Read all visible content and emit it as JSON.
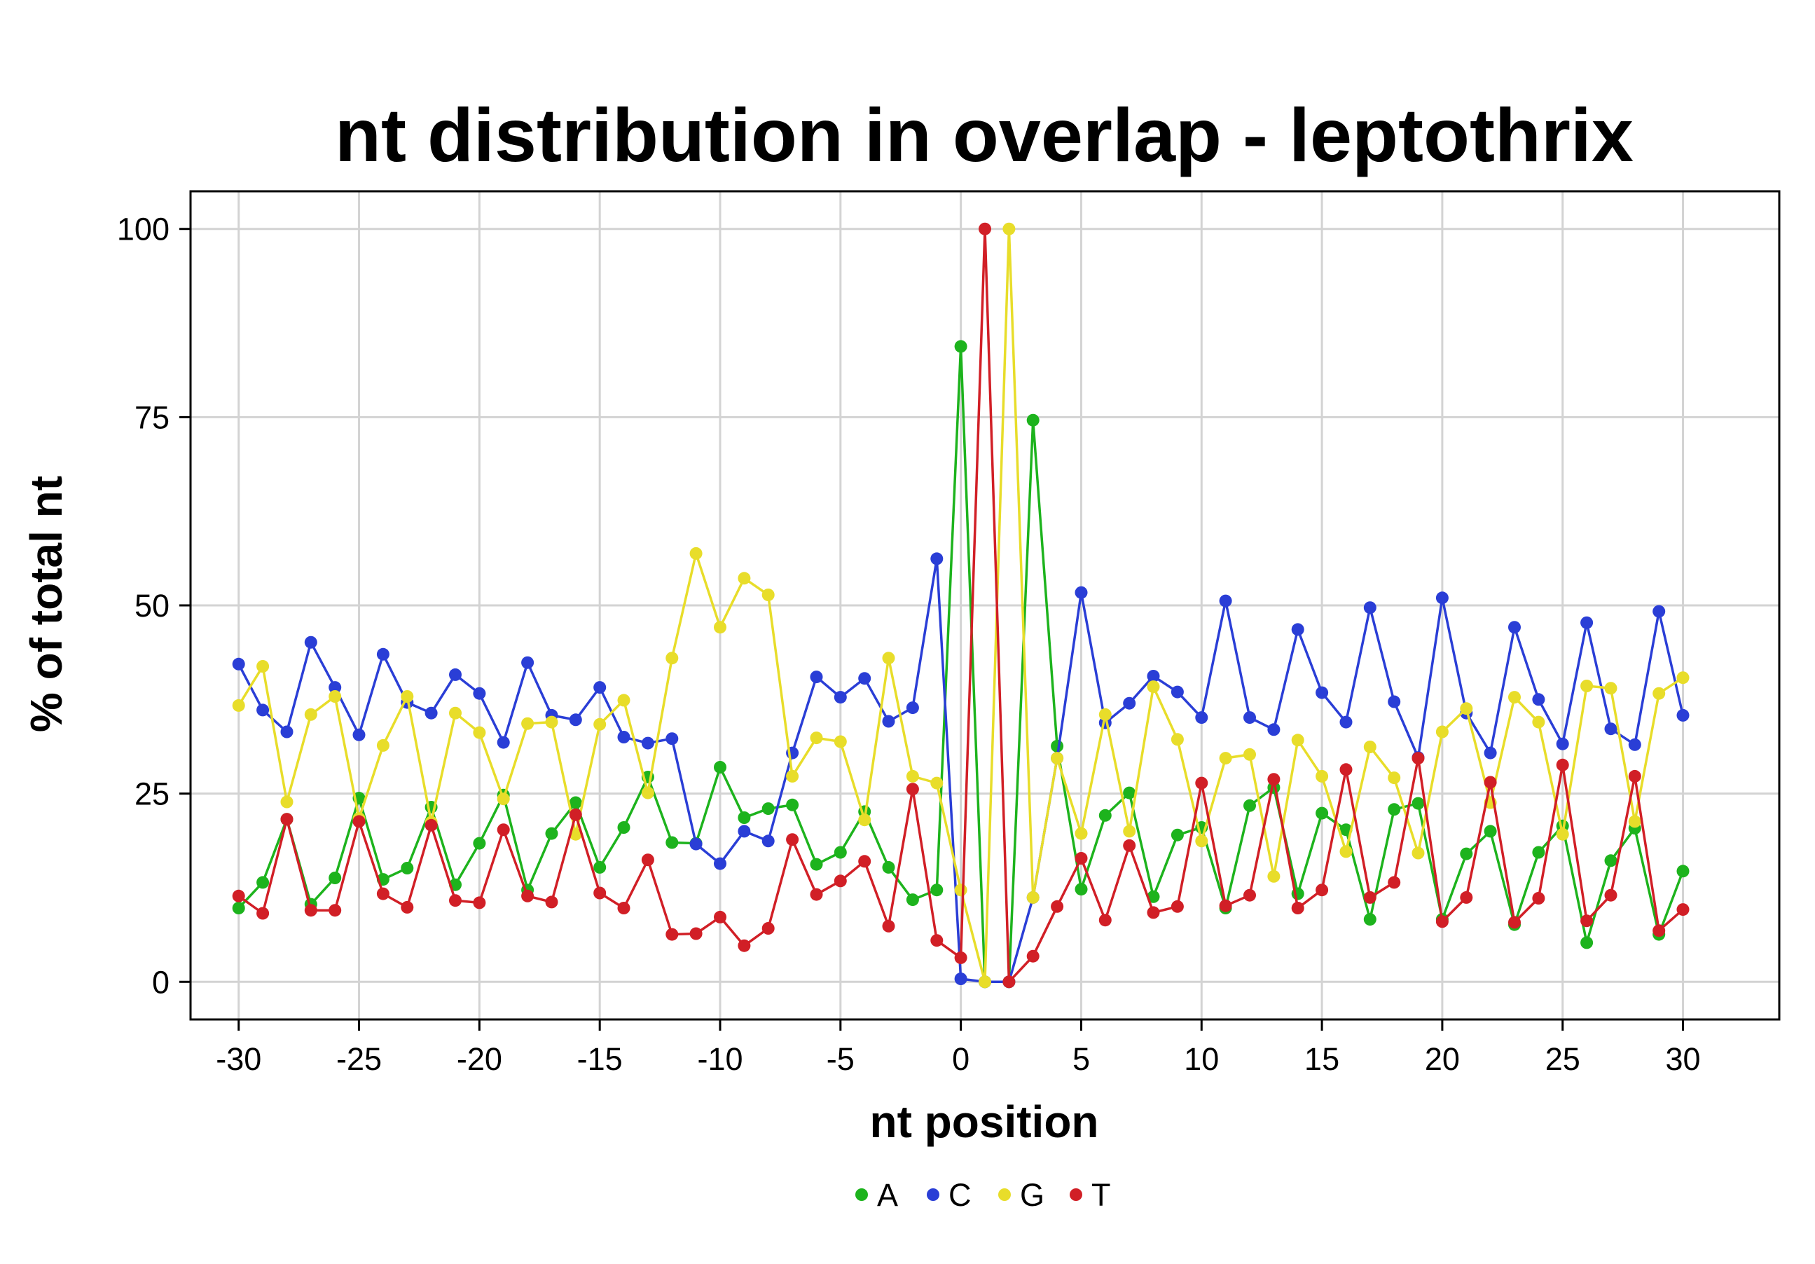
{
  "chart_data": {
    "type": "line",
    "title": "nt distribution in overlap - leptothrix",
    "xlabel": "nt position",
    "ylabel": "% of total nt",
    "xlim": [
      -32,
      34
    ],
    "ylim": [
      -5,
      105
    ],
    "xticks": [
      -30,
      -25,
      -20,
      -15,
      -10,
      -5,
      0,
      5,
      10,
      15,
      20,
      25,
      30
    ],
    "yticks": [
      0,
      25,
      50,
      75,
      100
    ],
    "grid": true,
    "legend_position": "bottom",
    "x": [
      -30,
      -29,
      -28,
      -27,
      -26,
      -25,
      -24,
      -23,
      -22,
      -21,
      -20,
      -19,
      -18,
      -17,
      -16,
      -15,
      -14,
      -13,
      -12,
      -11,
      -10,
      -9,
      -8,
      -7,
      -6,
      -5,
      -4,
      -3,
      -2,
      -1,
      0,
      1,
      2,
      3,
      4,
      5,
      6,
      7,
      8,
      9,
      10,
      11,
      12,
      13,
      14,
      15,
      16,
      17,
      18,
      19,
      20,
      21,
      22,
      23,
      24,
      25,
      26,
      27,
      28,
      29,
      30
    ],
    "series": [
      {
        "name": "A",
        "color": "#1db31d",
        "values": [
          9.8,
          13.2,
          21.6,
          10.3,
          13.8,
          24.4,
          13.6,
          15.1,
          23.2,
          12.9,
          18.4,
          24.8,
          12.2,
          19.7,
          23.8,
          15.2,
          20.5,
          27.2,
          18.5,
          18.4,
          28.5,
          21.8,
          23.0,
          23.5,
          15.6,
          17.2,
          22.6,
          15.2,
          10.9,
          12.2,
          84.4,
          0.0,
          0.0,
          74.6,
          31.3,
          12.3,
          22.1,
          25.1,
          11.3,
          19.5,
          20.5,
          9.8,
          23.4,
          25.8,
          11.7,
          22.4,
          20.2,
          8.3,
          22.9,
          23.7,
          8.3,
          17.0,
          20.0,
          7.6,
          17.2,
          20.7,
          5.2,
          16.1,
          20.4,
          6.3,
          14.7
        ]
      },
      {
        "name": "C",
        "color": "#2a3ed6",
        "values": [
          42.2,
          36.1,
          33.2,
          45.1,
          39.1,
          32.8,
          43.5,
          37.1,
          35.7,
          40.8,
          38.3,
          31.8,
          42.4,
          35.4,
          34.8,
          39.1,
          32.5,
          31.7,
          32.3,
          18.3,
          15.7,
          20.0,
          18.7,
          30.4,
          40.5,
          37.8,
          40.3,
          34.6,
          36.4,
          56.2,
          0.4,
          0.0,
          0.0,
          11.2,
          29.7,
          51.7,
          34.4,
          37.0,
          40.6,
          38.5,
          35.1,
          50.6,
          35.1,
          33.5,
          46.8,
          38.4,
          34.5,
          49.7,
          37.2,
          29.8,
          51.0,
          35.7,
          30.4,
          47.1,
          37.5,
          31.6,
          47.7,
          33.6,
          31.5,
          49.2,
          35.4
        ]
      },
      {
        "name": "G",
        "color": "#e8dd2a",
        "values": [
          36.7,
          41.9,
          23.9,
          35.5,
          37.9,
          21.7,
          31.4,
          37.9,
          21.2,
          35.7,
          33.1,
          24.3,
          34.3,
          34.5,
          19.6,
          34.2,
          37.4,
          25.1,
          43.0,
          56.9,
          47.1,
          53.6,
          51.4,
          27.3,
          32.4,
          31.9,
          21.5,
          43.0,
          27.3,
          26.4,
          12.2,
          0.0,
          100.0,
          11.2,
          29.7,
          19.7,
          35.5,
          20.0,
          39.2,
          32.2,
          18.7,
          29.7,
          30.2,
          14.0,
          32.1,
          27.3,
          17.3,
          31.2,
          27.1,
          17.1,
          33.2,
          36.3,
          23.8,
          37.8,
          34.5,
          19.6,
          39.3,
          39.0,
          21.3,
          38.3,
          40.4
        ]
      },
      {
        "name": "T",
        "color": "#d11f26",
        "values": [
          11.4,
          9.1,
          21.6,
          9.5,
          9.5,
          21.3,
          11.7,
          9.9,
          20.8,
          10.8,
          10.5,
          20.2,
          11.4,
          10.6,
          22.2,
          11.8,
          9.8,
          16.2,
          6.3,
          6.4,
          8.6,
          4.8,
          7.1,
          18.9,
          11.6,
          13.4,
          16.0,
          7.4,
          25.6,
          5.5,
          3.2,
          100.0,
          0.0,
          3.4,
          10.0,
          16.4,
          8.2,
          18.1,
          9.2,
          10.0,
          26.4,
          10.1,
          11.5,
          26.9,
          9.8,
          12.2,
          28.2,
          11.2,
          13.2,
          29.7,
          8.0,
          11.2,
          26.5,
          7.9,
          11.1,
          28.8,
          8.1,
          11.5,
          27.3,
          6.8,
          9.6
        ]
      }
    ]
  }
}
